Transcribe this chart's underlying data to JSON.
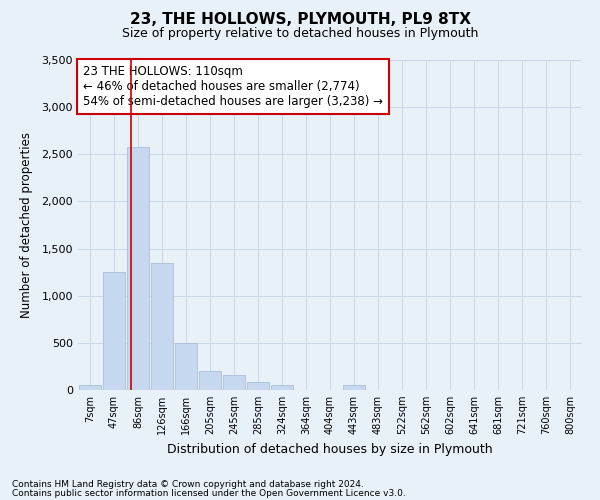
{
  "title": "23, THE HOLLOWS, PLYMOUTH, PL9 8TX",
  "subtitle": "Size of property relative to detached houses in Plymouth",
  "xlabel": "Distribution of detached houses by size in Plymouth",
  "ylabel": "Number of detached properties",
  "footnote1": "Contains HM Land Registry data © Crown copyright and database right 2024.",
  "footnote2": "Contains public sector information licensed under the Open Government Licence v3.0.",
  "categories": [
    "7sqm",
    "47sqm",
    "86sqm",
    "126sqm",
    "166sqm",
    "205sqm",
    "245sqm",
    "285sqm",
    "324sqm",
    "364sqm",
    "404sqm",
    "443sqm",
    "483sqm",
    "522sqm",
    "562sqm",
    "602sqm",
    "641sqm",
    "681sqm",
    "721sqm",
    "760sqm",
    "800sqm"
  ],
  "values": [
    50,
    1250,
    2580,
    1350,
    500,
    200,
    155,
    80,
    55,
    0,
    0,
    50,
    0,
    0,
    0,
    0,
    0,
    0,
    0,
    0,
    0
  ],
  "bar_color": "#c5d8f0",
  "bar_edge_color": "#aabfd8",
  "grid_color": "#c8d8e8",
  "background_color": "#e8f0f8",
  "red_line_x": 1.72,
  "annotation_line1": "23 THE HOLLOWS: 110sqm",
  "annotation_line2": "← 46% of detached houses are smaller (2,774)",
  "annotation_line3": "54% of semi-detached houses are larger (3,238) →",
  "annotation_box_color": "#ffffff",
  "annotation_border_color": "#cc0000",
  "ylim": [
    0,
    3500
  ],
  "yticks": [
    0,
    500,
    1000,
    1500,
    2000,
    2500,
    3000,
    3500
  ],
  "title_fontsize": 11,
  "subtitle_fontsize": 9
}
